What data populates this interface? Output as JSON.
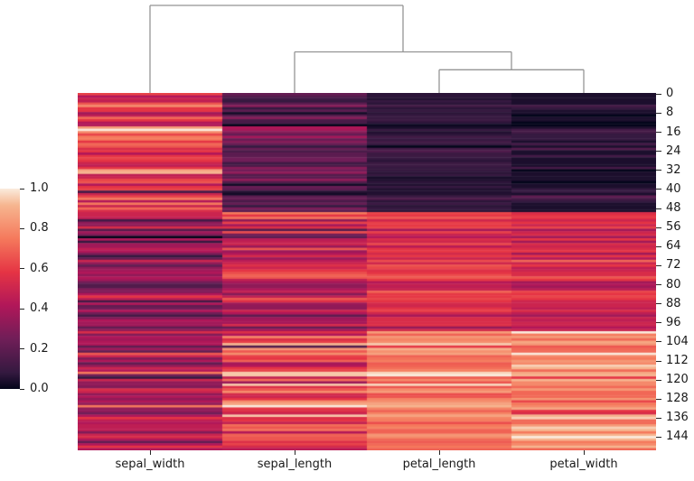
{
  "figure": {
    "title": ""
  },
  "chart_data": {
    "type": "heatmap",
    "subtype": "clustermap-with-column-dendrogram",
    "title": "",
    "xlabel": "",
    "ylabel": "",
    "columns": [
      "sepal_width",
      "sepal_length",
      "petal_length",
      "petal_width"
    ],
    "normalization": "min-max scaled per column (0 to 1)",
    "legend_position": "left colorbar",
    "colorbar_tick_labels": [
      "1.0",
      "0.8",
      "0.6",
      "0.4",
      "0.2",
      "0.0"
    ],
    "colorbar_tick_values": [
      1.0,
      0.8,
      0.6,
      0.4,
      0.2,
      0.0
    ],
    "row_tick_labels": [
      "0",
      "8",
      "16",
      "24",
      "32",
      "40",
      "48",
      "56",
      "64",
      "72",
      "80",
      "88",
      "96",
      "104",
      "112",
      "120",
      "128",
      "136",
      "144"
    ],
    "row_tick_values": [
      0,
      8,
      16,
      24,
      32,
      40,
      48,
      56,
      64,
      72,
      80,
      88,
      96,
      104,
      112,
      120,
      128,
      136,
      144
    ],
    "colormap": {
      "name": "rocket",
      "anchors": [
        {
          "t": 0.0,
          "color": "#03051A"
        },
        {
          "t": 0.0833,
          "color": "#351940"
        },
        {
          "t": 0.25,
          "color": "#701e58"
        },
        {
          "t": 0.4167,
          "color": "#b11759"
        },
        {
          "t": 0.5833,
          "color": "#e53444"
        },
        {
          "t": 0.75,
          "color": "#f5795c"
        },
        {
          "t": 0.9167,
          "color": "#f6b58f"
        },
        {
          "t": 1.0,
          "color": "#faebdd"
        }
      ]
    },
    "dendrogram": {
      "line_color": "#949494",
      "leaves": [
        "sepal_width",
        "sepal_length",
        "petal_length",
        "petal_width"
      ],
      "merges": [
        {
          "children": [
            2,
            3
          ],
          "rel_height": 0.265
        },
        {
          "children": [
            1,
            4
          ],
          "rel_height": 0.469
        },
        {
          "children": [
            0,
            5
          ],
          "rel_height": 1.0
        }
      ]
    },
    "rows": [
      [
        3.5,
        5.1,
        1.4,
        0.2
      ],
      [
        3.0,
        4.9,
        1.4,
        0.2
      ],
      [
        3.2,
        4.7,
        1.3,
        0.2
      ],
      [
        3.1,
        4.6,
        1.5,
        0.2
      ],
      [
        3.6,
        5.0,
        1.4,
        0.2
      ],
      [
        3.9,
        5.4,
        1.7,
        0.4
      ],
      [
        3.4,
        4.6,
        1.4,
        0.3
      ],
      [
        3.4,
        5.0,
        1.5,
        0.2
      ],
      [
        2.9,
        4.4,
        1.4,
        0.2
      ],
      [
        3.1,
        4.9,
        1.5,
        0.1
      ],
      [
        3.7,
        5.4,
        1.5,
        0.2
      ],
      [
        3.4,
        4.8,
        1.6,
        0.2
      ],
      [
        3.0,
        4.8,
        1.4,
        0.1
      ],
      [
        3.0,
        4.3,
        1.1,
        0.1
      ],
      [
        4.0,
        5.8,
        1.2,
        0.2
      ],
      [
        4.4,
        5.7,
        1.5,
        0.4
      ],
      [
        3.9,
        5.4,
        1.3,
        0.4
      ],
      [
        3.5,
        5.1,
        1.4,
        0.3
      ],
      [
        3.8,
        5.7,
        1.7,
        0.3
      ],
      [
        3.8,
        5.1,
        1.5,
        0.3
      ],
      [
        3.4,
        5.4,
        1.7,
        0.2
      ],
      [
        3.7,
        5.1,
        1.5,
        0.4
      ],
      [
        3.6,
        4.6,
        1.0,
        0.2
      ],
      [
        3.3,
        5.1,
        1.7,
        0.5
      ],
      [
        3.4,
        4.8,
        1.9,
        0.2
      ],
      [
        3.0,
        5.0,
        1.6,
        0.2
      ],
      [
        3.4,
        5.0,
        1.6,
        0.4
      ],
      [
        3.5,
        5.2,
        1.5,
        0.2
      ],
      [
        3.4,
        5.2,
        1.4,
        0.2
      ],
      [
        3.2,
        4.7,
        1.6,
        0.2
      ],
      [
        3.1,
        4.8,
        1.6,
        0.2
      ],
      [
        3.4,
        5.4,
        1.5,
        0.4
      ],
      [
        4.1,
        5.2,
        1.5,
        0.1
      ],
      [
        4.2,
        5.5,
        1.4,
        0.2
      ],
      [
        3.1,
        4.9,
        1.5,
        0.2
      ],
      [
        3.2,
        5.0,
        1.2,
        0.2
      ],
      [
        3.5,
        5.5,
        1.3,
        0.2
      ],
      [
        3.6,
        4.9,
        1.4,
        0.1
      ],
      [
        3.0,
        4.4,
        1.3,
        0.2
      ],
      [
        3.4,
        5.1,
        1.5,
        0.2
      ],
      [
        3.5,
        5.0,
        1.3,
        0.3
      ],
      [
        2.3,
        4.5,
        1.3,
        0.3
      ],
      [
        3.2,
        4.4,
        1.3,
        0.2
      ],
      [
        3.5,
        5.0,
        1.6,
        0.6
      ],
      [
        3.8,
        5.1,
        1.9,
        0.4
      ],
      [
        3.0,
        4.8,
        1.4,
        0.3
      ],
      [
        3.8,
        5.1,
        1.6,
        0.2
      ],
      [
        3.2,
        4.6,
        1.4,
        0.2
      ],
      [
        3.7,
        5.3,
        1.5,
        0.2
      ],
      [
        3.3,
        5.0,
        1.4,
        0.2
      ],
      [
        3.2,
        7.0,
        4.7,
        1.4
      ],
      [
        3.2,
        6.4,
        4.5,
        1.5
      ],
      [
        3.1,
        6.9,
        4.9,
        1.5
      ],
      [
        2.3,
        5.5,
        4.0,
        1.3
      ],
      [
        2.8,
        6.5,
        4.6,
        1.5
      ],
      [
        2.8,
        5.7,
        4.5,
        1.3
      ],
      [
        3.3,
        6.3,
        4.7,
        1.6
      ],
      [
        2.4,
        4.9,
        3.3,
        1.0
      ],
      [
        2.9,
        6.6,
        4.6,
        1.3
      ],
      [
        2.7,
        5.2,
        3.9,
        1.4
      ],
      [
        2.0,
        5.0,
        3.5,
        1.0
      ],
      [
        3.0,
        5.9,
        4.2,
        1.5
      ],
      [
        2.2,
        6.0,
        4.0,
        1.0
      ],
      [
        2.9,
        6.1,
        4.7,
        1.4
      ],
      [
        2.9,
        5.6,
        3.6,
        1.3
      ],
      [
        3.1,
        6.7,
        4.4,
        1.4
      ],
      [
        3.0,
        5.6,
        4.5,
        1.5
      ],
      [
        2.7,
        5.8,
        4.1,
        1.0
      ],
      [
        2.2,
        6.2,
        4.5,
        1.5
      ],
      [
        2.5,
        5.6,
        3.9,
        1.1
      ],
      [
        3.2,
        5.9,
        4.8,
        1.8
      ],
      [
        2.8,
        6.1,
        4.0,
        1.3
      ],
      [
        2.5,
        6.3,
        4.9,
        1.5
      ],
      [
        2.8,
        6.1,
        4.7,
        1.2
      ],
      [
        2.9,
        6.4,
        4.3,
        1.3
      ],
      [
        3.0,
        6.6,
        4.4,
        1.4
      ],
      [
        2.8,
        6.8,
        4.8,
        1.4
      ],
      [
        3.0,
        6.7,
        5.0,
        1.7
      ],
      [
        2.9,
        6.0,
        4.5,
        1.5
      ],
      [
        2.6,
        5.7,
        3.5,
        1.0
      ],
      [
        2.4,
        5.5,
        3.8,
        1.1
      ],
      [
        2.4,
        5.5,
        3.7,
        1.0
      ],
      [
        2.7,
        5.8,
        3.9,
        1.2
      ],
      [
        2.7,
        6.0,
        5.1,
        1.6
      ],
      [
        3.0,
        5.4,
        4.5,
        1.5
      ],
      [
        3.4,
        6.0,
        4.5,
        1.6
      ],
      [
        3.1,
        6.7,
        4.7,
        1.5
      ],
      [
        2.3,
        6.3,
        4.4,
        1.3
      ],
      [
        3.0,
        5.6,
        4.1,
        1.3
      ],
      [
        2.5,
        5.5,
        4.0,
        1.3
      ],
      [
        2.6,
        5.5,
        4.4,
        1.2
      ],
      [
        3.0,
        6.1,
        4.6,
        1.4
      ],
      [
        2.6,
        5.8,
        4.0,
        1.2
      ],
      [
        2.3,
        5.0,
        3.3,
        1.0
      ],
      [
        2.7,
        5.6,
        4.2,
        1.3
      ],
      [
        3.0,
        5.7,
        4.2,
        1.2
      ],
      [
        2.9,
        5.7,
        4.2,
        1.3
      ],
      [
        2.9,
        6.2,
        4.3,
        1.3
      ],
      [
        2.5,
        5.1,
        3.0,
        1.1
      ],
      [
        2.8,
        5.7,
        4.1,
        1.3
      ],
      [
        3.3,
        6.3,
        6.0,
        2.5
      ],
      [
        2.7,
        5.8,
        5.1,
        1.9
      ],
      [
        3.0,
        7.1,
        5.9,
        2.1
      ],
      [
        2.9,
        6.3,
        5.6,
        1.8
      ],
      [
        3.0,
        6.5,
        5.8,
        2.2
      ],
      [
        3.0,
        7.6,
        6.6,
        2.1
      ],
      [
        2.5,
        4.9,
        4.5,
        1.7
      ],
      [
        2.9,
        7.3,
        6.3,
        1.8
      ],
      [
        2.5,
        6.7,
        5.8,
        1.8
      ],
      [
        3.6,
        7.2,
        6.1,
        2.5
      ],
      [
        3.2,
        6.5,
        5.1,
        2.0
      ],
      [
        2.7,
        6.4,
        5.3,
        1.9
      ],
      [
        3.0,
        6.8,
        5.5,
        2.1
      ],
      [
        2.5,
        5.7,
        5.0,
        2.0
      ],
      [
        2.8,
        5.8,
        5.1,
        2.4
      ],
      [
        3.2,
        6.4,
        5.3,
        2.3
      ],
      [
        3.0,
        6.5,
        5.5,
        1.8
      ],
      [
        3.8,
        7.7,
        6.7,
        2.2
      ],
      [
        2.6,
        7.7,
        6.9,
        2.3
      ],
      [
        2.2,
        6.0,
        5.0,
        1.5
      ],
      [
        3.2,
        6.9,
        5.7,
        2.3
      ],
      [
        2.8,
        5.6,
        4.9,
        2.0
      ],
      [
        2.8,
        7.7,
        6.7,
        2.0
      ],
      [
        2.7,
        6.3,
        4.9,
        1.8
      ],
      [
        3.3,
        6.7,
        5.7,
        2.1
      ],
      [
        3.2,
        7.2,
        6.0,
        1.8
      ],
      [
        2.8,
        6.2,
        4.8,
        1.8
      ],
      [
        3.0,
        6.1,
        4.9,
        1.8
      ],
      [
        2.8,
        6.4,
        5.6,
        2.1
      ],
      [
        3.0,
        7.2,
        5.8,
        1.6
      ],
      [
        2.8,
        7.4,
        6.1,
        1.9
      ],
      [
        3.8,
        7.9,
        6.4,
        2.0
      ],
      [
        2.8,
        6.4,
        5.6,
        2.2
      ],
      [
        2.8,
        6.3,
        5.1,
        1.5
      ],
      [
        2.6,
        6.1,
        5.6,
        1.4
      ],
      [
        3.0,
        7.7,
        6.1,
        2.3
      ],
      [
        3.4,
        6.3,
        5.6,
        2.4
      ],
      [
        3.1,
        6.4,
        5.5,
        1.8
      ],
      [
        3.0,
        6.0,
        4.8,
        1.8
      ],
      [
        3.1,
        6.9,
        5.4,
        2.1
      ],
      [
        3.1,
        6.7,
        5.6,
        2.4
      ],
      [
        3.1,
        6.9,
        5.1,
        2.3
      ],
      [
        2.7,
        5.8,
        5.1,
        1.9
      ],
      [
        3.2,
        6.8,
        5.9,
        2.3
      ],
      [
        3.3,
        6.7,
        5.7,
        2.5
      ],
      [
        3.0,
        6.7,
        5.2,
        2.3
      ],
      [
        2.5,
        6.3,
        5.0,
        1.9
      ],
      [
        3.0,
        6.5,
        5.2,
        2.0
      ],
      [
        3.4,
        6.2,
        5.4,
        2.3
      ],
      [
        3.0,
        5.9,
        5.1,
        1.8
      ]
    ]
  }
}
